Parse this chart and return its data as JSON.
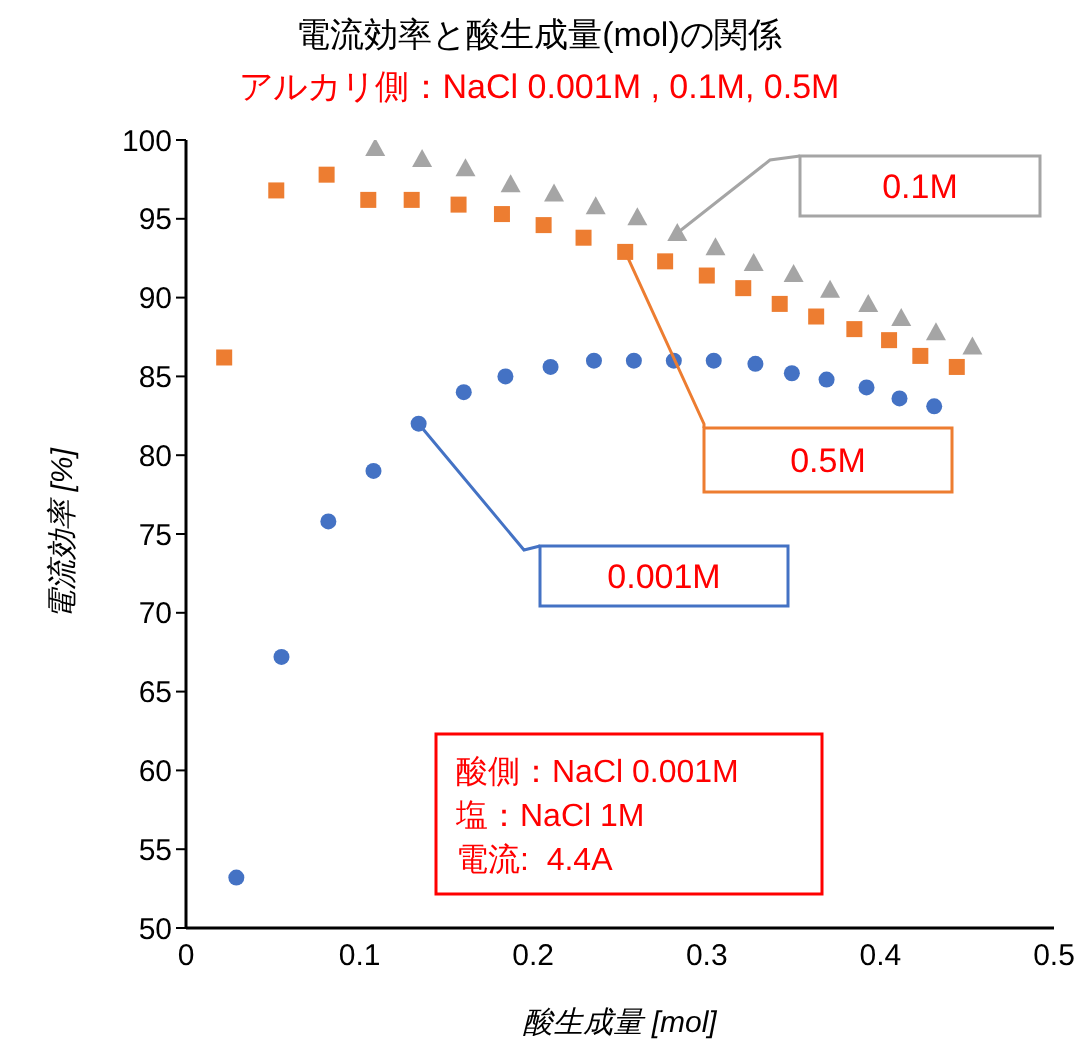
{
  "chart_data": {
    "type": "scatter",
    "title": "電流効率と酸生成量(mol)の関係",
    "subtitle": "アルカリ側：NaCl 0.001M , 0.1M, 0.5M",
    "xlabel": "酸生成量 [mol]",
    "ylabel": "電流効率 [%]",
    "series": [
      {
        "name": "0.001M",
        "color": "#4472c4",
        "marker": "circle",
        "x": [
          0.029,
          0.055,
          0.082,
          0.108,
          0.134,
          0.16,
          0.184,
          0.21,
          0.235,
          0.258,
          0.281,
          0.304,
          0.328,
          0.349,
          0.369,
          0.392,
          0.411,
          0.431
        ],
        "values": [
          53.2,
          67.2,
          75.8,
          79,
          82,
          84,
          85,
          85.6,
          86,
          86,
          86,
          86,
          85.8,
          85.2,
          84.8,
          84.3,
          83.6,
          83.1
        ]
      },
      {
        "name": "0.5M",
        "color": "#ed7d31",
        "marker": "square",
        "x": [
          0.022,
          0.052,
          0.081,
          0.105,
          0.13,
          0.157,
          0.182,
          0.206,
          0.229,
          0.253,
          0.276,
          0.3,
          0.321,
          0.342,
          0.363,
          0.385,
          0.405,
          0.423,
          0.444
        ],
        "values": [
          86.2,
          96.8,
          97.8,
          96.2,
          96.2,
          95.9,
          95.3,
          94.6,
          93.8,
          92.9,
          92.3,
          91.4,
          90.6,
          89.6,
          88.8,
          88,
          87.3,
          86.3,
          85.6
        ]
      },
      {
        "name": "0.1M",
        "color": "#a5a5a5",
        "marker": "triangle",
        "x": [
          0.109,
          0.136,
          0.161,
          0.187,
          0.212,
          0.236,
          0.26,
          0.283,
          0.305,
          0.327,
          0.35,
          0.371,
          0.393,
          0.412,
          0.432,
          0.453
        ],
        "values": [
          99.5,
          98.8,
          98.2,
          97.2,
          96.6,
          95.8,
          95.1,
          94.1,
          93.2,
          92.2,
          91.5,
          90.5,
          89.6,
          88.7,
          87.8,
          86.9
        ]
      }
    ],
    "xlim": [
      0,
      0.5
    ],
    "xticks": [
      0,
      0.1,
      0.2,
      0.3,
      0.4,
      0.5
    ],
    "ylim": [
      50,
      100
    ],
    "yticks": [
      50,
      55,
      60,
      65,
      70,
      75,
      80,
      85,
      90,
      95,
      100
    ],
    "annotations": [
      "酸側：NaCl 0.001M\n塩：NaCl 1M\n電流:  4.4A"
    ]
  }
}
